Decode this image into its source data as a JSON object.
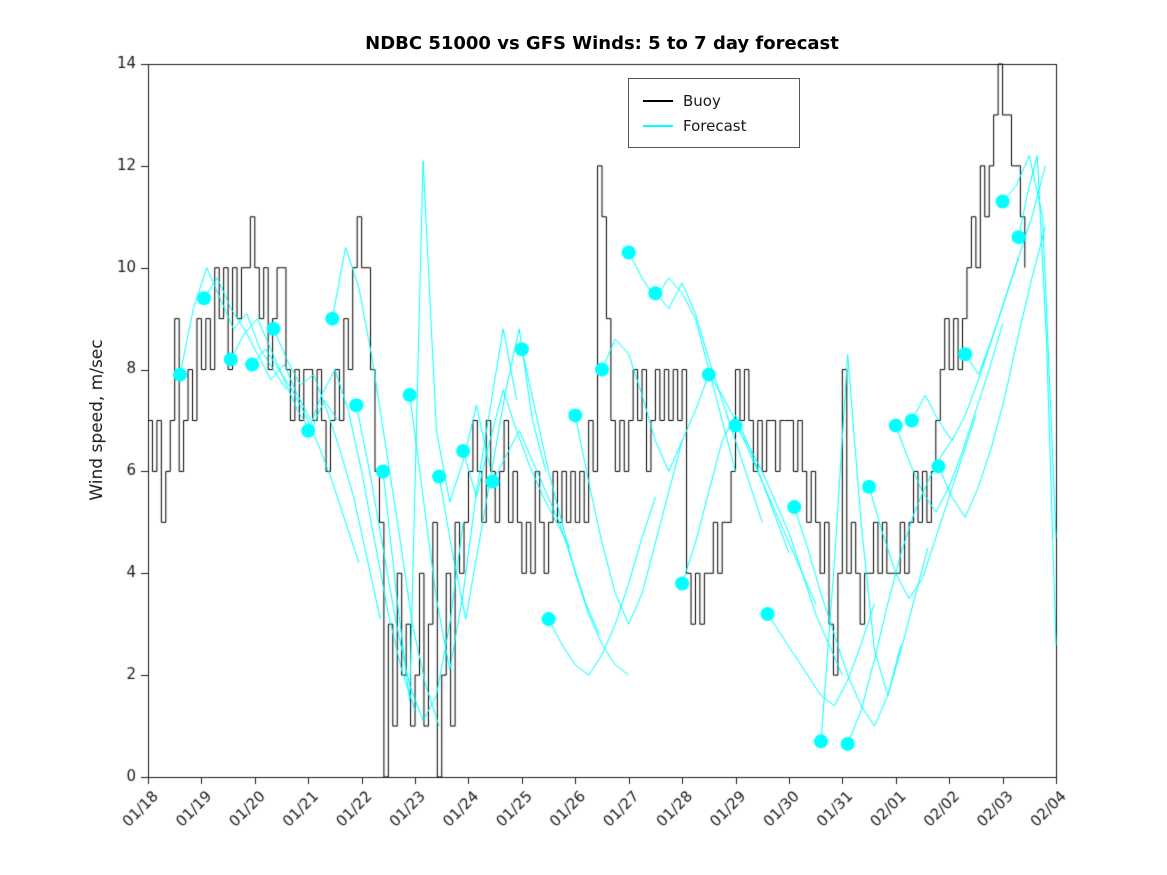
{
  "figure": {
    "background": "#ffffff"
  },
  "chart_data": {
    "type": "line",
    "title": "NDBC 51000 vs GFS Winds: 5 to 7 day forecast",
    "xlabel": "",
    "ylabel": "Wind speed, m/sec",
    "x_tick_labels": [
      "01/18",
      "01/19",
      "01/20",
      "01/21",
      "01/22",
      "01/23",
      "01/24",
      "01/25",
      "01/26",
      "01/27",
      "01/28",
      "01/29",
      "01/30",
      "01/31",
      "02/01",
      "02/02",
      "02/03",
      "02/04"
    ],
    "yticks": [
      0,
      2,
      4,
      6,
      8,
      10,
      12,
      14
    ],
    "ylim": [
      0,
      14
    ],
    "xlim_days": [
      0,
      17
    ],
    "grid": "off",
    "legend": {
      "position": "top-center",
      "items": [
        {
          "label": "Buoy",
          "color": "#000000"
        },
        {
          "label": "Forecast",
          "color": "#00FFFF"
        }
      ]
    },
    "series": [
      {
        "name": "Buoy",
        "type": "stairs",
        "color": "#000000",
        "t0_days": 0,
        "dt_hours": 2,
        "values": [
          7,
          6,
          7,
          5,
          6,
          7,
          9,
          6,
          7,
          8,
          7,
          9,
          8,
          9,
          8,
          10,
          9,
          10,
          8,
          10,
          9,
          10,
          10,
          11,
          10,
          9,
          10,
          8,
          9,
          10,
          10,
          8,
          7,
          8,
          7,
          8,
          8,
          7,
          8,
          7,
          6,
          7,
          8,
          7,
          9,
          8,
          10,
          11,
          10,
          10,
          8,
          6,
          5,
          0,
          3,
          1,
          4,
          2,
          3,
          1,
          2,
          4,
          1,
          3,
          5,
          0,
          2,
          4,
          1,
          5,
          4,
          5,
          6,
          7,
          6,
          5,
          7,
          6,
          5,
          6,
          7,
          5,
          6,
          5,
          4,
          5,
          4,
          6,
          5,
          4,
          5,
          6,
          5,
          6,
          5,
          6,
          5,
          6,
          5,
          7,
          6,
          12,
          11,
          9,
          7,
          6,
          7,
          6,
          7,
          8,
          7,
          8,
          6,
          7,
          8,
          7,
          8,
          7,
          8,
          7,
          8,
          4,
          3,
          4,
          3,
          4,
          4,
          5,
          4,
          5,
          5,
          6,
          8,
          7,
          8,
          7,
          6,
          7,
          6,
          7,
          7,
          6,
          7,
          7,
          7,
          6,
          7,
          6,
          5,
          6,
          5,
          4,
          5,
          3,
          2,
          4,
          8,
          4,
          5,
          4,
          3,
          4,
          4,
          5,
          4,
          5,
          4,
          4,
          4,
          5,
          4,
          5,
          6,
          5,
          6,
          5,
          6,
          7,
          8,
          9,
          8,
          9,
          8,
          9,
          10,
          11,
          10,
          12,
          11,
          12,
          13,
          14,
          13,
          13,
          12,
          12,
          11,
          10
        ]
      },
      {
        "name": "Forecast",
        "type": "line-segments",
        "color": "#00FFFF",
        "marker": "filled-circle",
        "marker_at_segment_start": true,
        "marker_radius_px": 7,
        "dt_default_days": 0.25,
        "segments": [
          {
            "t0": 0.6,
            "values": [
              7.9,
              9.2,
              10.0,
              9.4,
              8.8,
              9.1,
              8.4,
              8.0,
              7.6
            ]
          },
          {
            "t0": 1.05,
            "values": [
              9.4,
              9.8,
              9.2,
              8.8,
              8.3,
              7.8,
              8.1,
              7.5,
              7.0
            ]
          },
          {
            "t0": 1.55,
            "values": [
              8.2,
              8.7,
              9.0,
              8.4,
              7.8,
              7.2,
              6.8,
              7.4,
              7.0
            ]
          },
          {
            "t0": 1.95,
            "values": [
              8.1,
              8.4,
              8.0,
              7.6,
              7.1,
              6.5,
              5.8,
              5.0,
              4.2
            ]
          },
          {
            "t0": 2.35,
            "values": [
              8.8,
              8.2,
              7.7,
              7.9,
              7.2,
              6.4,
              5.5,
              4.3,
              3.1
            ]
          },
          {
            "t0": 3.0,
            "values": [
              6.8,
              7.5,
              8.0,
              7.2,
              6.0,
              4.6,
              3.2,
              2.1,
              1.3
            ]
          },
          {
            "t0": 3.45,
            "values": [
              9.0,
              10.4,
              9.6,
              8.2,
              6.5,
              4.8,
              3.0,
              1.8,
              1.0
            ]
          },
          {
            "t0": 3.9,
            "values": [
              7.3,
              6.0,
              4.5,
              3.0,
              1.8,
              1.1,
              1.6,
              3.0,
              5.0
            ]
          },
          {
            "t0": 4.4,
            "values": [
              6.0,
              3.6,
              1.5,
              12.1,
              6.8,
              5.4,
              6.2,
              7.3,
              6.1
            ]
          },
          {
            "t0": 4.9,
            "values": [
              7.5,
              5.5,
              3.5,
              2.1,
              3.6,
              5.6,
              7.2,
              8.8,
              7.4
            ]
          },
          {
            "t0": 5.45,
            "values": [
              5.9,
              4.4,
              3.1,
              4.6,
              6.1,
              7.6,
              8.8,
              7.0,
              6.0
            ]
          },
          {
            "t0": 5.9,
            "values": [
              6.4,
              5.5,
              6.6,
              7.6,
              6.8,
              6.1,
              5.5,
              5.0,
              4.5
            ]
          },
          {
            "t0": 6.45,
            "values": [
              5.8,
              6.3,
              6.8,
              6.2,
              5.6,
              5.0,
              4.2,
              3.4,
              2.8
            ]
          },
          {
            "t0": 7.0,
            "values": [
              8.4,
              7.2,
              6.0,
              5.0,
              4.0,
              3.2,
              2.6,
              2.2,
              2.0
            ]
          },
          {
            "t0": 7.5,
            "values": [
              3.1,
              2.6,
              2.2,
              2.0,
              2.4,
              3.0,
              3.8,
              4.7,
              5.5
            ]
          },
          {
            "t0": 8.0,
            "values": [
              7.1,
              5.8,
              4.6,
              3.6,
              3.0,
              3.6,
              4.6,
              5.6,
              6.6
            ]
          },
          {
            "t0": 8.5,
            "values": [
              8.0,
              8.6,
              8.3,
              7.5,
              6.6,
              6.0,
              6.6,
              7.2,
              7.9
            ]
          },
          {
            "t0": 9.0,
            "values": [
              10.3,
              9.8,
              9.4,
              9.8,
              9.5,
              9.0,
              8.0,
              7.0,
              6.0
            ]
          },
          {
            "t0": 9.5,
            "values": [
              9.5,
              9.2,
              9.7,
              9.1,
              8.2,
              7.4,
              6.6,
              5.8,
              5.0
            ]
          },
          {
            "t0": 10.0,
            "values": [
              3.8,
              4.6,
              5.6,
              6.6,
              7.1,
              6.5,
              5.8,
              5.1,
              4.4
            ]
          },
          {
            "t0": 10.5,
            "values": [
              7.9,
              7.5,
              7.0,
              6.4,
              5.8,
              5.2,
              4.6,
              4.0,
              3.4
            ]
          },
          {
            "t0": 11.0,
            "values": [
              6.9,
              6.5,
              6.0,
              5.4,
              4.8,
              4.0,
              3.2,
              2.6,
              2.0
            ]
          },
          {
            "t0": 11.6,
            "values": [
              3.2,
              2.8,
              2.4,
              2.0,
              1.6,
              1.4,
              1.9,
              2.6,
              3.4
            ]
          },
          {
            "t0": 12.1,
            "values": [
              5.3,
              4.5,
              3.6,
              2.8,
              2.0,
              1.4,
              1.0,
              1.6,
              2.6
            ]
          },
          {
            "t0": 12.6,
            "values": [
              0.7,
              4.2,
              8.3,
              5.0,
              2.5,
              1.6,
              2.5,
              3.5,
              4.5
            ]
          },
          {
            "t0": 13.1,
            "values": [
              0.65,
              1.3,
              2.3,
              3.4,
              4.4,
              5.2,
              5.8,
              6.3,
              6.7
            ]
          },
          {
            "t0": 13.5,
            "values": [
              5.7,
              4.8,
              4.0,
              3.5,
              3.9,
              4.7,
              5.5,
              6.3,
              7.1
            ]
          },
          {
            "t0": 14.0,
            "values": [
              6.9,
              6.2,
              5.6,
              5.2,
              5.7,
              6.4,
              7.2,
              8.0,
              8.9
            ]
          },
          {
            "t0": 14.3,
            "values": [
              7.0,
              7.5,
              7.0,
              6.6,
              7.1,
              7.8,
              8.6,
              9.4,
              10.2
            ]
          },
          {
            "t0": 14.8,
            "values": [
              6.1,
              5.5,
              5.1,
              5.7,
              6.5,
              7.5,
              8.7,
              9.8,
              10.8
            ]
          },
          {
            "t0": 15.3,
            "values": [
              8.3,
              7.9,
              8.6,
              9.4,
              10.2,
              11.0,
              12.0
            ]
          },
          {
            "t0": 16.0,
            "values": [
              11.3,
              11.6,
              12.2,
              11.0,
              4.7
            ]
          },
          {
            "t0": 16.3,
            "dt": 0.175,
            "values": [
              10.6,
              11.5,
              12.2,
              8.5,
              2.6
            ]
          }
        ]
      }
    ]
  }
}
